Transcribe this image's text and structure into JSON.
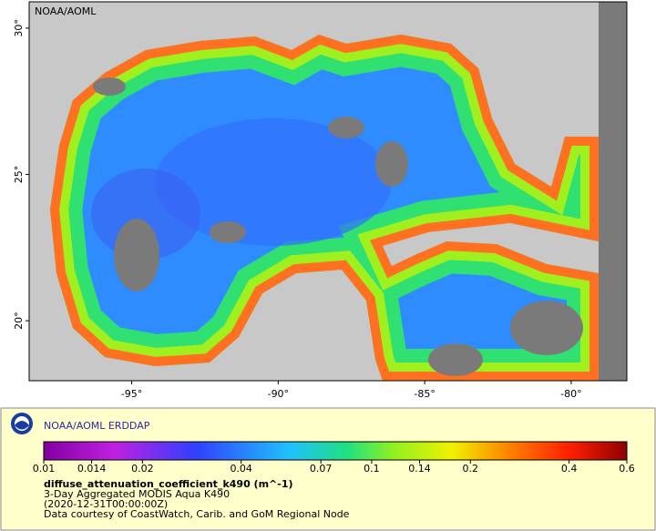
{
  "map": {
    "label": "NOAA/AOML",
    "xlim": [
      -98.5,
      -78.1
    ],
    "ylim": [
      17.95,
      30.9
    ],
    "xticks": [
      {
        "value": -95,
        "label": "-95°"
      },
      {
        "value": -90,
        "label": "-90°"
      },
      {
        "value": -85,
        "label": "-85°"
      },
      {
        "value": -80,
        "label": "-80°"
      }
    ],
    "yticks": [
      {
        "value": 20,
        "label": "20°"
      },
      {
        "value": 25,
        "label": "25°"
      },
      {
        "value": 30,
        "label": "30°"
      }
    ]
  },
  "legend": {
    "title": "NOAA/AOML ERDDAP",
    "colorbar": {
      "scale": "log",
      "lim": [
        0.01,
        0.6
      ],
      "ticks": [
        0.01,
        0.014,
        0.02,
        0.04,
        0.07,
        0.1,
        0.14,
        0.2,
        0.4,
        0.6
      ]
    },
    "variable": "diffuse_attenuation_coefficient_k490 (m^-1)",
    "lines": [
      "3-Day Aggregated MODIS Aqua K490",
      "(2020-12-31T00:00:00Z)",
      "Data courtesy of CoastWatch, Carib. and GoM Regional Node"
    ]
  }
}
